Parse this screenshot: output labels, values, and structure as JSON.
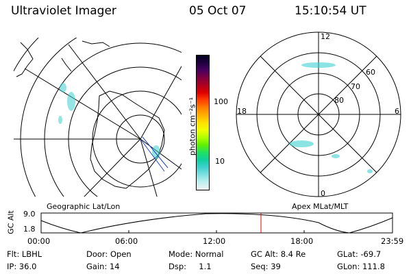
{
  "header": {
    "title": "Ultraviolet Imager",
    "date": "05 Oct 07",
    "time": "15:10:54 UT"
  },
  "colorbar": {
    "label": "photon cm⁻²s⁻¹",
    "ticks": [
      "100",
      "10"
    ],
    "colors": [
      "#000022",
      "#200040",
      "#4a0060",
      "#800040",
      "#b00020",
      "#e00000",
      "#ff4000",
      "#ff8000",
      "#ffb000",
      "#ffe000",
      "#f0ff00",
      "#b0ff00",
      "#60f000",
      "#20e060",
      "#10d0a0",
      "#40d0d0",
      "#80e0e0",
      "#c0f0f0",
      "#f0f0f0"
    ]
  },
  "left_map": {
    "label": "Geographic Lat/Lon"
  },
  "right_map": {
    "label": "Apex MLat/MLT",
    "mlt_labels": {
      "top": "12",
      "left": "18",
      "right": "6",
      "bottom": "0"
    },
    "lat_labels": [
      "60",
      "70",
      "80"
    ]
  },
  "gc_alt_plot": {
    "axis_label": "GC Alt",
    "ymax": "9.0",
    "ymin": "1.8",
    "x_ticks": [
      "00:00",
      "06:00",
      "12:00",
      "18:00",
      "23:59"
    ]
  },
  "info": {
    "filter": "Flt: LBHL",
    "door": "Door: Open",
    "mode": "Mode: Normal",
    "gc_alt": "GC Alt: 8.4 Re",
    "glat": "GLat: -69.7",
    "ip": "IP: 36.0",
    "gain": "Gain: 14",
    "dsp": "Dsp:     1.1",
    "seq": "Seq: 39",
    "glon": "GLon: 111.8"
  }
}
